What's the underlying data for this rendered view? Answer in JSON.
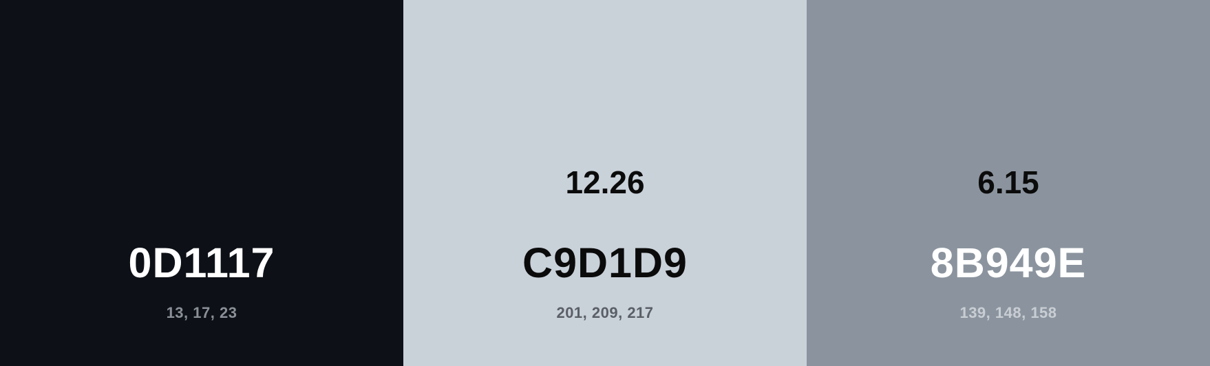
{
  "swatches": [
    {
      "hex": "0D1117",
      "rgb": "13, 17, 23",
      "contrast": "",
      "background_color": "#0D1117",
      "text_color": "#FFFFFF"
    },
    {
      "hex": "C9D1D9",
      "rgb": "201, 209, 217",
      "contrast": "12.26",
      "background_color": "#C9D1D9",
      "text_color": "#0B0B0B"
    },
    {
      "hex": "8B949E",
      "rgb": "139, 148, 158",
      "contrast": "6.15",
      "background_color": "#8B949E",
      "text_color": "#FFFFFF"
    }
  ]
}
